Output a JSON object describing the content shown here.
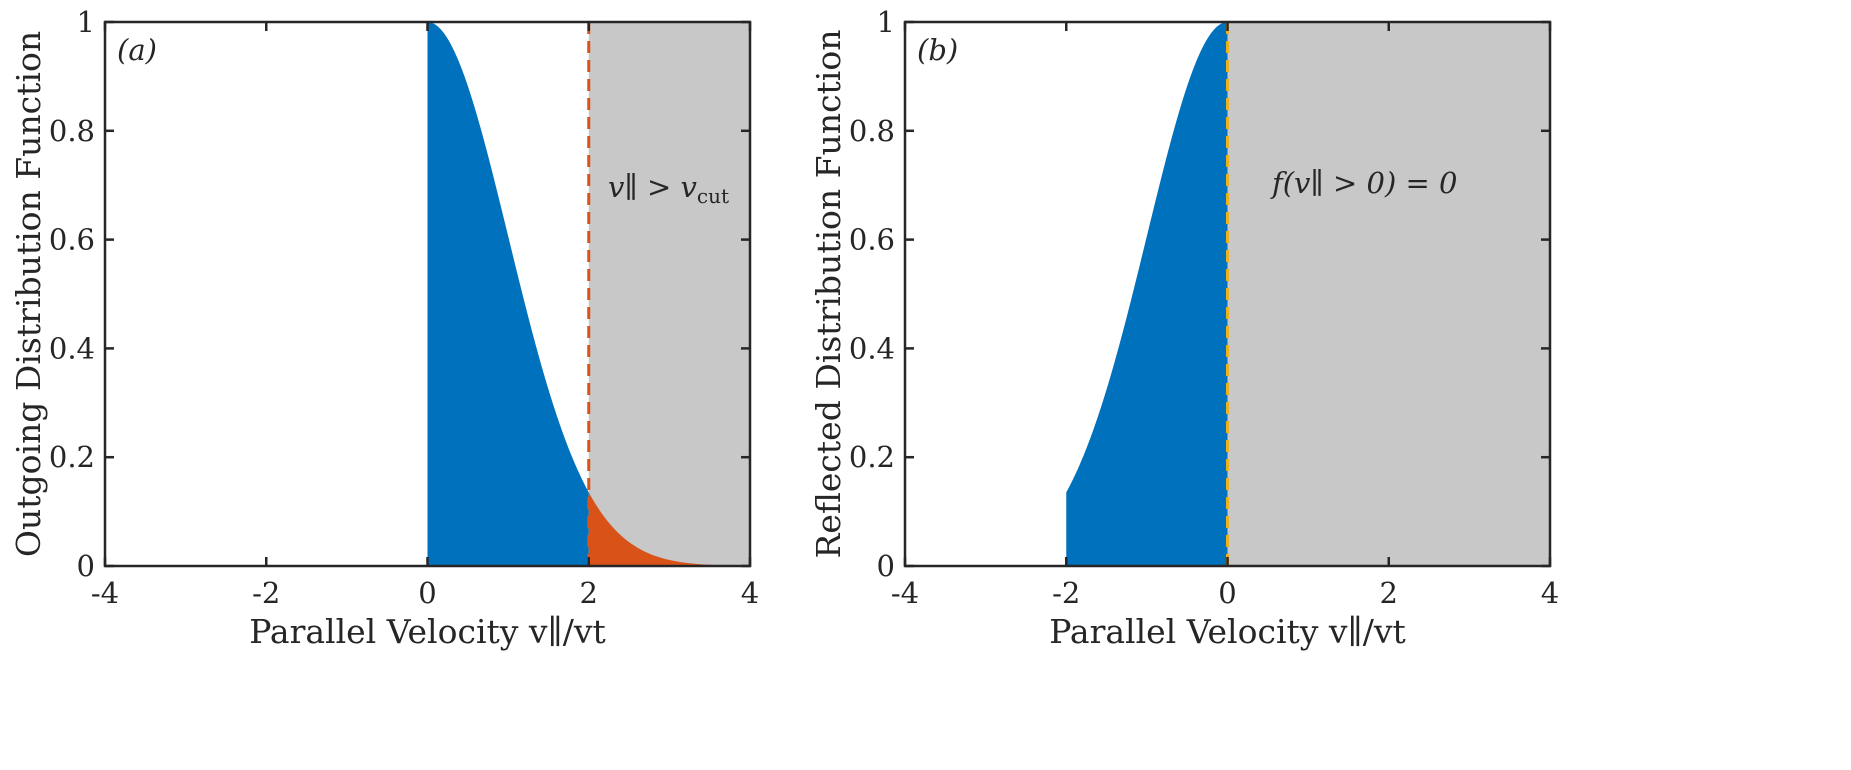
{
  "chart_data": [
    {
      "type": "area",
      "panel_label": "(a)",
      "xlabel": "Parallel Velocity v∥/vt",
      "ylabel": "Outgoing Distribution Function",
      "xlim": [
        -4,
        4
      ],
      "ylim": [
        0,
        1
      ],
      "xticks": [
        "-4",
        "-2",
        "0",
        "2",
        "4"
      ],
      "yticks": [
        "0",
        "0.2",
        "0.4",
        "0.6",
        "0.8",
        "1"
      ],
      "grid": false,
      "function": "exp(-x^2/2)",
      "fills": [
        {
          "color": "#0072BD",
          "x_range": [
            0,
            2
          ],
          "values_sampled": {
            "0": 1.0,
            "1": 0.607,
            "2": 0.135
          }
        },
        {
          "color": "#D95319",
          "x_range": [
            2,
            4
          ],
          "values_sampled": {
            "2": 0.135,
            "3": 0.011,
            "4": 0.0003
          }
        }
      ],
      "shaded_region": {
        "color": "#C8C8C8",
        "x_range": [
          2,
          4
        ]
      },
      "vline": {
        "x": 2,
        "color": "#D95319",
        "style": "dashed"
      },
      "annotation": {
        "main": "v∥ > v",
        "sub": "cut"
      }
    },
    {
      "type": "area",
      "panel_label": "(b)",
      "xlabel": "Parallel Velocity v∥/vt",
      "ylabel": "Reflected Distribution Function",
      "xlim": [
        -4,
        4
      ],
      "ylim": [
        0,
        1
      ],
      "xticks": [
        "-4",
        "-2",
        "0",
        "2",
        "4"
      ],
      "yticks": [
        "0",
        "0.2",
        "0.4",
        "0.6",
        "0.8",
        "1"
      ],
      "grid": false,
      "function": "exp(-x^2/2)",
      "fills": [
        {
          "color": "#0072BD",
          "x_range": [
            -2,
            0
          ],
          "values_sampled": {
            "-2": 0.135,
            "-1": 0.607,
            "0": 1.0
          }
        }
      ],
      "shaded_region": {
        "color": "#C8C8C8",
        "x_range": [
          0,
          4
        ]
      },
      "vline": {
        "x": 0,
        "color": "#EDB120",
        "style": "dashed"
      },
      "annotation": {
        "main": "f(v∥ > 0) = 0",
        "sub": ""
      }
    }
  ]
}
